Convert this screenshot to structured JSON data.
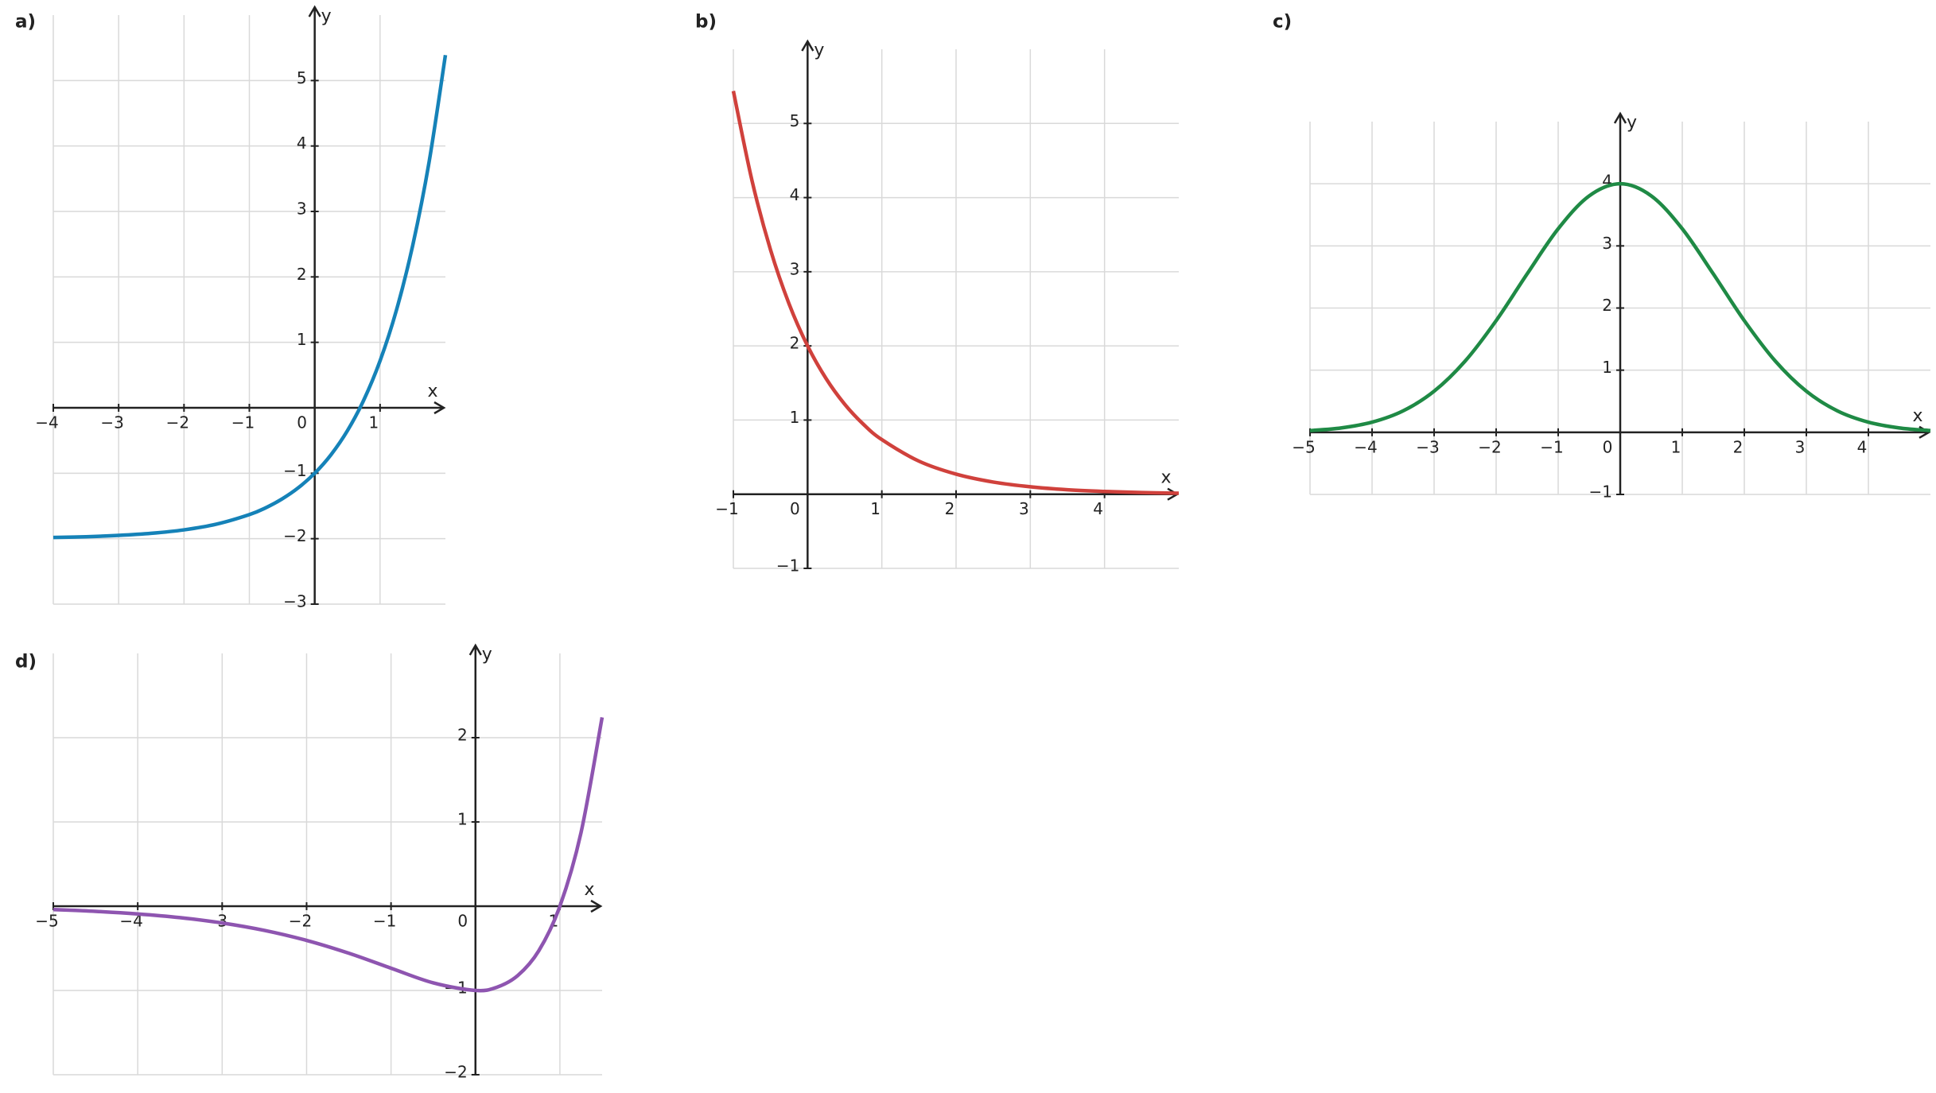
{
  "chart_data": [
    {
      "type": "line",
      "panel": "a)",
      "xlabel": "x",
      "ylabel": "y",
      "x": [
        -4,
        -3.5,
        -3,
        -2.5,
        -2,
        -1.5,
        -1,
        -0.75,
        -0.5,
        -0.25,
        0,
        0.25,
        0.5,
        0.75,
        1,
        1.25,
        1.5,
        1.75,
        2
      ],
      "series": [
        {
          "color": "#1582b8",
          "values": [
            -1.982,
            -1.97,
            -1.95,
            -1.918,
            -1.865,
            -1.777,
            -1.632,
            -1.528,
            -1.393,
            -1.221,
            -1,
            -0.716,
            -0.351,
            0.117,
            0.718,
            1.49,
            2.482,
            3.755,
            5.389
          ]
        }
      ],
      "xlim": [
        -4,
        2
      ],
      "ylim": [
        -3,
        6
      ],
      "xticks": [
        {
          "value": -4,
          "label": "−4"
        },
        {
          "value": -3,
          "label": "−3"
        },
        {
          "value": -2,
          "label": "−2"
        },
        {
          "value": -1,
          "label": "−1"
        },
        0,
        1
      ],
      "yticks": [
        {
          "value": -3,
          "label": "−3"
        },
        {
          "value": -2,
          "label": "−2"
        },
        {
          "value": -1,
          "label": "−1"
        },
        1,
        2,
        3,
        4,
        5
      ],
      "grid": true
    },
    {
      "type": "line",
      "panel": "b)",
      "xlabel": "x",
      "ylabel": "y",
      "x": [
        -1,
        -0.75,
        -0.5,
        -0.25,
        0,
        0.25,
        0.5,
        0.75,
        1,
        1.5,
        2,
        2.5,
        3,
        3.5,
        4,
        4.5,
        5
      ],
      "series": [
        {
          "color": "#d0413c",
          "values": [
            5.437,
            4.234,
            3.297,
            2.568,
            2,
            1.558,
            1.213,
            0.945,
            0.736,
            0.446,
            0.271,
            0.164,
            0.1,
            0.06,
            0.037,
            0.022,
            0.013
          ]
        }
      ],
      "xlim": [
        -1,
        5
      ],
      "ylim": [
        -1,
        6
      ],
      "xticks": [
        {
          "value": -1,
          "label": "−1"
        },
        0,
        1,
        2,
        3,
        4
      ],
      "yticks": [
        {
          "value": -1,
          "label": "−1"
        },
        1,
        2,
        3,
        4,
        5
      ],
      "grid": true
    },
    {
      "type": "line",
      "panel": "c)",
      "xlabel": "x",
      "ylabel": "y",
      "x": [
        -5,
        -4.5,
        -4,
        -3.5,
        -3,
        -2.5,
        -2,
        -1.5,
        -1,
        -0.5,
        0,
        0.5,
        1,
        1.5,
        2,
        2.5,
        3,
        3.5,
        4,
        4.5,
        5
      ],
      "series": [
        {
          "color": "#1f8a45",
          "values": [
            0.027,
            0.07,
            0.163,
            0.345,
            0.661,
            1.146,
            1.797,
            2.55,
            3.275,
            3.805,
            4,
            3.805,
            3.275,
            2.55,
            1.797,
            1.146,
            0.661,
            0.345,
            0.163,
            0.07,
            0.027
          ]
        }
      ],
      "xlim": [
        -5,
        5
      ],
      "ylim": [
        -1,
        5
      ],
      "xticks": [
        {
          "value": -5,
          "label": "−5"
        },
        {
          "value": -4,
          "label": "−4"
        },
        {
          "value": -3,
          "label": "−3"
        },
        {
          "value": -2,
          "label": "−2"
        },
        {
          "value": -1,
          "label": "−1"
        },
        0,
        1,
        2,
        3,
        4
      ],
      "yticks": [
        {
          "value": -1,
          "label": "−1"
        },
        1,
        2,
        3,
        4
      ],
      "grid": true
    },
    {
      "type": "line",
      "panel": "d)",
      "xlabel": "x",
      "ylabel": "y",
      "x": [
        -5,
        -4.5,
        -4,
        -3.5,
        -3,
        -2.5,
        -2,
        -1.5,
        -1,
        -0.5,
        0,
        0.25,
        0.5,
        0.75,
        1,
        1.25,
        1.5
      ],
      "series": [
        {
          "color": "#8e55b0",
          "values": [
            -0.04,
            -0.061,
            -0.092,
            -0.136,
            -0.199,
            -0.287,
            -0.406,
            -0.558,
            -0.736,
            -0.91,
            -1,
            -0.963,
            -0.824,
            -0.529,
            0,
            0.873,
            2.241
          ]
        }
      ],
      "xlim": [
        -5,
        1.5
      ],
      "ylim": [
        -2,
        3
      ],
      "xticks": [
        {
          "value": -5,
          "label": "−5"
        },
        {
          "value": -4,
          "label": "−4"
        },
        {
          "value": -3,
          "label": "−3"
        },
        {
          "value": -2,
          "label": "−2"
        },
        {
          "value": -1,
          "label": "−1"
        },
        0,
        1
      ],
      "yticks": [
        {
          "value": -2,
          "label": "−2"
        },
        {
          "value": -1,
          "label": "−1"
        },
        1,
        2
      ],
      "grid": true
    }
  ]
}
